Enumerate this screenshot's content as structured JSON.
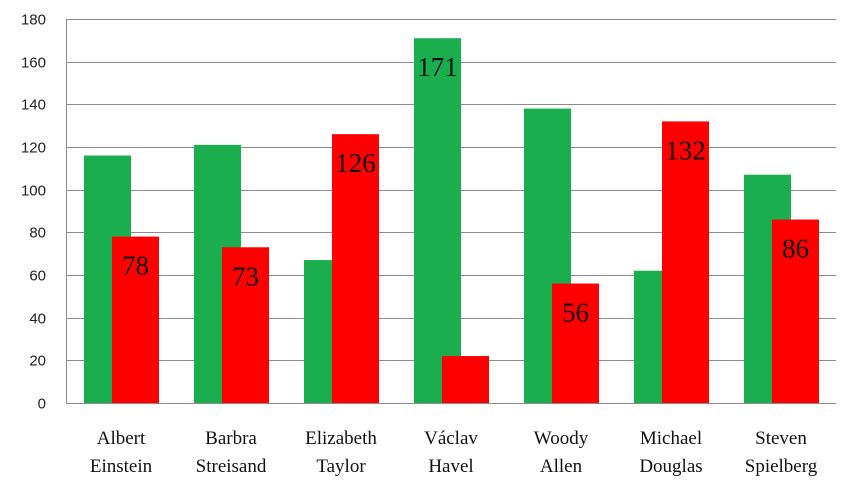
{
  "chart_data": {
    "type": "bar",
    "categories": [
      [
        "Albert",
        "Einstein"
      ],
      [
        "Barbra",
        "Streisand"
      ],
      [
        "Elizabeth",
        "Taylor"
      ],
      [
        "Václav",
        "Havel"
      ],
      [
        "Woody",
        "Allen"
      ],
      [
        "Michael",
        "Douglas"
      ],
      [
        "Steven",
        "Spielberg"
      ]
    ],
    "series": [
      {
        "color": "#1aae4f",
        "values": [
          116,
          121,
          67,
          171,
          138,
          62,
          107
        ]
      },
      {
        "color": "#ff0000",
        "values": [
          78,
          73,
          126,
          22,
          56,
          132,
          86
        ]
      }
    ],
    "data_labels": [
      {
        "category": 0,
        "series": 1,
        "text": "78"
      },
      {
        "category": 1,
        "series": 1,
        "text": "73"
      },
      {
        "category": 2,
        "series": 1,
        "text": "126"
      },
      {
        "category": 3,
        "series": 0,
        "text": "171"
      },
      {
        "category": 4,
        "series": 1,
        "text": "56"
      },
      {
        "category": 5,
        "series": 1,
        "text": "132"
      },
      {
        "category": 6,
        "series": 1,
        "text": "86"
      }
    ],
    "y_ticks": [
      "0",
      "20",
      "40",
      "60",
      "80",
      "100",
      "120",
      "140",
      "160",
      "180"
    ],
    "ylim": [
      0,
      180
    ],
    "grid": true,
    "legend": "none"
  }
}
